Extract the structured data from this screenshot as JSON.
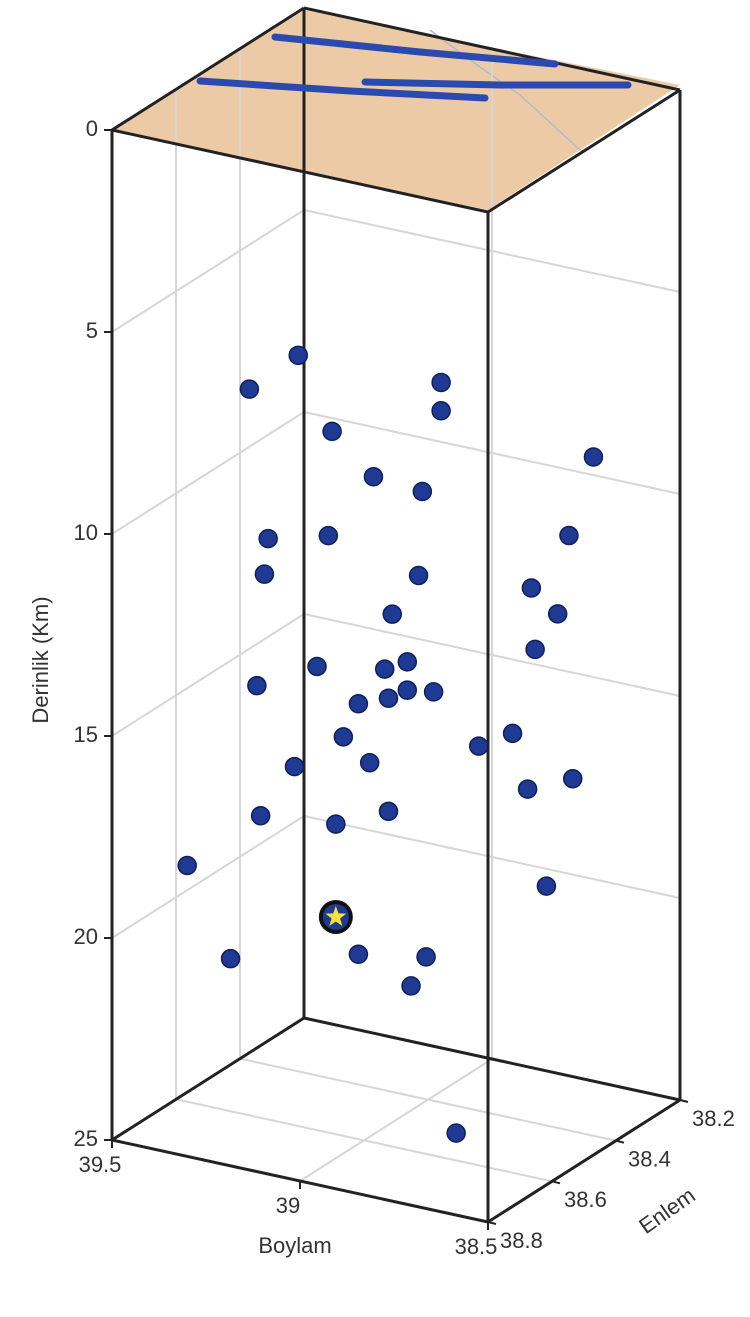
{
  "chart_data": {
    "type": "scatter3d",
    "xlabel": "Boylam",
    "ylabel": "Enlem",
    "zlabel": "Derinlik (Km)",
    "xlim": [
      39.5,
      38.5
    ],
    "xticks": [
      39.5,
      39,
      38.5
    ],
    "ylim": [
      38.8,
      38.2
    ],
    "yticks": [
      38.2,
      38.4,
      38.6,
      38.8
    ],
    "zlim": [
      0,
      25
    ],
    "zticks": [
      0,
      5,
      10,
      15,
      20,
      25
    ],
    "grid": true,
    "color": "#1f3a93",
    "x": [
      39.26,
      39.39,
      38.88,
      38.88,
      39.17,
      38.56,
      39.06,
      38.93,
      39.34,
      39.18,
      38.54,
      39.35,
      38.94,
      38.64,
      39.01,
      38.57,
      38.63,
      39.21,
      39.03,
      38.97,
      39.37,
      38.97,
      38.9,
      39.02,
      39.1,
      39.14,
      38.78,
      38.69,
      39.27,
      39.07,
      38.53,
      38.65,
      39.36,
      39.02,
      39.16,
      39.3,
      38.6,
      39.1,
      38.92,
      39.44,
      38.96,
      38.84
    ],
    "y": [
      38.5,
      38.5,
      38.5,
      38.5,
      38.5,
      38.4,
      38.5,
      38.5,
      38.5,
      38.5,
      38.5,
      38.5,
      38.5,
      38.5,
      38.5,
      38.5,
      38.5,
      38.5,
      38.5,
      38.5,
      38.5,
      38.5,
      38.5,
      38.5,
      38.5,
      38.5,
      38.5,
      38.5,
      38.5,
      38.5,
      38.5,
      38.5,
      38.5,
      38.5,
      38.5,
      38.8,
      38.5,
      38.5,
      38.5,
      38.5,
      38.5,
      38.5
    ],
    "z": [
      6.6,
      7.7,
      6.5,
      7.2,
      8.3,
      8.2,
      9.2,
      9.3,
      11.3,
      10.9,
      9.6,
      12.2,
      11.4,
      11.1,
      12.5,
      11.6,
      12.6,
      14.2,
      13.9,
      13.6,
      15.0,
      14.3,
      14.2,
      14.6,
      14.9,
      15.8,
      15.3,
      14.8,
      16.8,
      16.3,
      15.6,
      16.1,
      18.2,
      17.4,
      18.0,
      17.8,
      18.4,
      21.1,
      20.8,
      21.9,
      21.6,
      25.0
    ],
    "mainshock": {
      "x": 39.16,
      "y": 38.5,
      "z": 20.3,
      "color": "#f5e33b"
    }
  }
}
